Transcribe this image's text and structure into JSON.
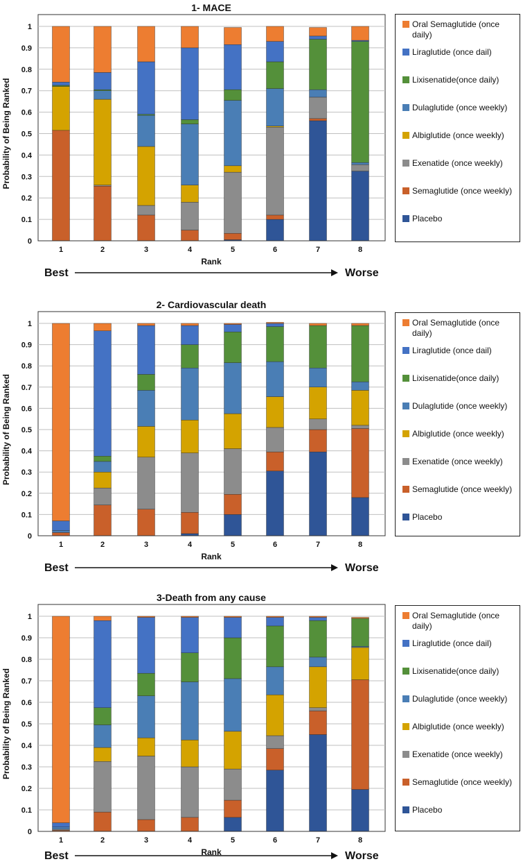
{
  "series_names": [
    "Oral Semaglutide (once daily)",
    "Liraglutide (once dail)",
    "Lixisenatide(once daily)",
    "Dulaglutide (once weekly)",
    "Albiglutide (once weekly)",
    "Exenatide (once weekly)",
    "Semaglutide (once weekly)",
    "Placebo"
  ],
  "colors": {
    "Oral Semaglutide (once daily)": "#ED7D31",
    "Liraglutide (once dail)": "#4472C4",
    "Lixisenatide(once daily)": "#54903A",
    "Dulaglutide (once weekly)": "#4A7EB5",
    "Albiglutide (once weekly)": "#D4A300",
    "Exenatide (once weekly)": "#8C8C8C",
    "Semaglutide (once weekly)": "#C9602A",
    "Placebo": "#2F5597",
    "gridline": "#BFBFBF",
    "text": "#111111"
  },
  "best_label": "Best",
  "worse_label": "Worse",
  "chart_data": [
    {
      "type": "bar",
      "stacked": true,
      "title": "1- MACE",
      "xlabel": "Rank",
      "ylabel": "Probability of Being Ranked",
      "ylim": [
        0,
        1
      ],
      "yticks": [
        "0",
        "0.1",
        "0.2",
        "0.3",
        "0.4",
        "0.5",
        "0.6",
        "0.7",
        "0.8",
        "0.9",
        "1"
      ],
      "categories": [
        "1",
        "2",
        "3",
        "4",
        "5",
        "6",
        "7",
        "8"
      ],
      "series": [
        {
          "name": "Placebo",
          "values": [
            0,
            0,
            0,
            0,
            0.005,
            0.1,
            0.56,
            0.325
          ]
        },
        {
          "name": "Semaglutide (once weekly)",
          "values": [
            0.515,
            0.255,
            0.12,
            0.05,
            0.03,
            0.02,
            0.01,
            0
          ]
        },
        {
          "name": "Exenatide (once weekly)",
          "values": [
            0,
            0.005,
            0.045,
            0.13,
            0.285,
            0.41,
            0.1,
            0.03
          ]
        },
        {
          "name": "Albiglutide (once weekly)",
          "values": [
            0.205,
            0.4,
            0.275,
            0.08,
            0.03,
            0.005,
            0,
            0
          ]
        },
        {
          "name": "Dulaglutide (once weekly)",
          "values": [
            0,
            0.04,
            0.145,
            0.285,
            0.305,
            0.175,
            0.035,
            0.01
          ]
        },
        {
          "name": "Lixisenatide(once daily)",
          "values": [
            0.005,
            0.005,
            0.005,
            0.02,
            0.05,
            0.125,
            0.235,
            0.565
          ]
        },
        {
          "name": "Liraglutide (once dail)",
          "values": [
            0.015,
            0.08,
            0.245,
            0.335,
            0.21,
            0.095,
            0.015,
            0.005
          ]
        },
        {
          "name": "Oral Semaglutide (once daily)",
          "values": [
            0.26,
            0.215,
            0.165,
            0.1,
            0.08,
            0.07,
            0.04,
            0.065
          ]
        }
      ]
    },
    {
      "type": "bar",
      "stacked": true,
      "title": "2- Cardiovascular death",
      "xlabel": "Rank",
      "ylabel": "Probability of Being Ranked",
      "ylim": [
        0,
        1
      ],
      "yticks": [
        "0",
        "0.1",
        "0.2",
        "0.3",
        "0.4",
        "0.5",
        "0.6",
        "0.7",
        "0.8",
        "0.9",
        "1"
      ],
      "categories": [
        "1",
        "2",
        "3",
        "4",
        "5",
        "6",
        "7",
        "8"
      ],
      "series": [
        {
          "name": "Placebo",
          "values": [
            0,
            0,
            0,
            0.01,
            0.1,
            0.305,
            0.395,
            0.18
          ]
        },
        {
          "name": "Semaglutide (once weekly)",
          "values": [
            0.015,
            0.145,
            0.125,
            0.1,
            0.095,
            0.09,
            0.105,
            0.325
          ]
        },
        {
          "name": "Exenatide (once weekly)",
          "values": [
            0,
            0.08,
            0.245,
            0.28,
            0.215,
            0.115,
            0.05,
            0.015
          ]
        },
        {
          "name": "Albiglutide (once weekly)",
          "values": [
            0,
            0.075,
            0.145,
            0.155,
            0.165,
            0.145,
            0.15,
            0.165
          ]
        },
        {
          "name": "Dulaglutide (once weekly)",
          "values": [
            0.01,
            0.05,
            0.17,
            0.245,
            0.24,
            0.165,
            0.09,
            0.04
          ]
        },
        {
          "name": "Lixisenatide(once daily)",
          "values": [
            0,
            0.025,
            0.075,
            0.11,
            0.145,
            0.165,
            0.2,
            0.265
          ]
        },
        {
          "name": "Liraglutide (once dail)",
          "values": [
            0.045,
            0.59,
            0.23,
            0.09,
            0.035,
            0.015,
            0,
            0
          ]
        },
        {
          "name": "Oral Semaglutide (once daily)",
          "values": [
            0.93,
            0.035,
            0.01,
            0.01,
            0.005,
            0.005,
            0.01,
            0.01
          ]
        }
      ]
    },
    {
      "type": "bar",
      "stacked": true,
      "title": "3-Death from any cause",
      "xlabel": "Rank",
      "ylabel": "Probability of Being Ranked",
      "ylim": [
        0,
        1
      ],
      "yticks": [
        "0",
        "0.1",
        "0.2",
        "0.3",
        "0.4",
        "0.5",
        "0.6",
        "0.7",
        "0.8",
        "0.9",
        "1"
      ],
      "categories": [
        "1",
        "2",
        "3",
        "4",
        "5",
        "6",
        "7",
        "8"
      ],
      "series": [
        {
          "name": "Placebo",
          "values": [
            0,
            0,
            0,
            0,
            0.065,
            0.285,
            0.45,
            0.195
          ]
        },
        {
          "name": "Semaglutide (once weekly)",
          "values": [
            0.005,
            0.09,
            0.055,
            0.065,
            0.08,
            0.1,
            0.11,
            0.51
          ]
        },
        {
          "name": "Exenatide (once weekly)",
          "values": [
            0.005,
            0.235,
            0.295,
            0.235,
            0.145,
            0.06,
            0.015,
            0
          ]
        },
        {
          "name": "Albiglutide (once weekly)",
          "values": [
            0,
            0.065,
            0.085,
            0.125,
            0.175,
            0.19,
            0.19,
            0.15
          ]
        },
        {
          "name": "Dulaglutide (once weekly)",
          "values": [
            0.01,
            0.105,
            0.195,
            0.27,
            0.245,
            0.13,
            0.045,
            0.005
          ]
        },
        {
          "name": "Lixisenatide(once daily)",
          "values": [
            0,
            0.08,
            0.105,
            0.135,
            0.19,
            0.19,
            0.17,
            0.13
          ]
        },
        {
          "name": "Liraglutide (once dail)",
          "values": [
            0.02,
            0.405,
            0.26,
            0.165,
            0.095,
            0.04,
            0.015,
            0
          ]
        },
        {
          "name": "Oral Semaglutide (once daily)",
          "values": [
            0.96,
            0.02,
            0.005,
            0.005,
            0.005,
            0.005,
            0.005,
            0.005
          ]
        }
      ]
    }
  ]
}
